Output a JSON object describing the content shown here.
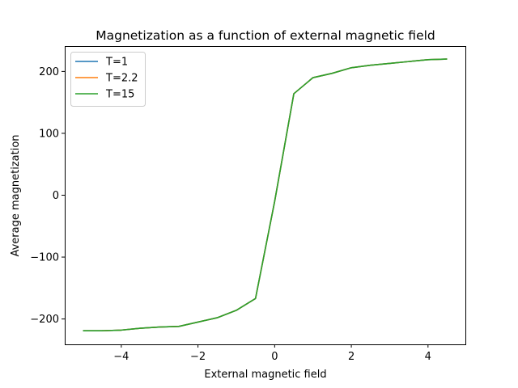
{
  "chart_data": {
    "type": "line",
    "title": "Magnetization as a function of external magnetic field",
    "xlabel": "External magnetic field",
    "ylabel": "Average magnetization",
    "xlim": [
      -5.475,
      4.975
    ],
    "ylim": [
      -241,
      241
    ],
    "xticks": [
      -4,
      -2,
      0,
      2,
      4
    ],
    "xtick_labels": [
      "−4",
      "−2",
      "0",
      "2",
      "4"
    ],
    "yticks": [
      -200,
      -100,
      0,
      100,
      200
    ],
    "ytick_labels": [
      "−200",
      "−100",
      "0",
      "100",
      "200"
    ],
    "grid": false,
    "legend_position": "upper-left",
    "x": [
      -5,
      -4.5,
      -4,
      -3.5,
      -3,
      -2.5,
      -2,
      -1.5,
      -1,
      -0.5,
      0,
      0.5,
      1,
      1.5,
      2,
      2.5,
      3,
      3.5,
      4,
      4.5
    ],
    "series": [
      {
        "name": "T=1",
        "color": "#1f77b4",
        "values": [
          -219,
          -219,
          -218,
          -215,
          -213,
          -212,
          -205,
          -198,
          -186,
          -167,
          -10,
          164,
          190,
          197,
          206,
          210,
          213,
          216,
          219,
          220
        ]
      },
      {
        "name": "T=2.2",
        "color": "#ff7f0e",
        "values": [
          -219,
          -219,
          -218,
          -215,
          -213,
          -212,
          -205,
          -198,
          -186,
          -167,
          -10,
          164,
          190,
          197,
          206,
          210,
          213,
          216,
          219,
          220
        ]
      },
      {
        "name": "T=15",
        "color": "#2ca02c",
        "values": [
          -219,
          -219,
          -218,
          -215,
          -213,
          -212,
          -205,
          -198,
          -186,
          -167,
          -10,
          164,
          190,
          197,
          206,
          210,
          213,
          216,
          219,
          220
        ]
      }
    ]
  }
}
